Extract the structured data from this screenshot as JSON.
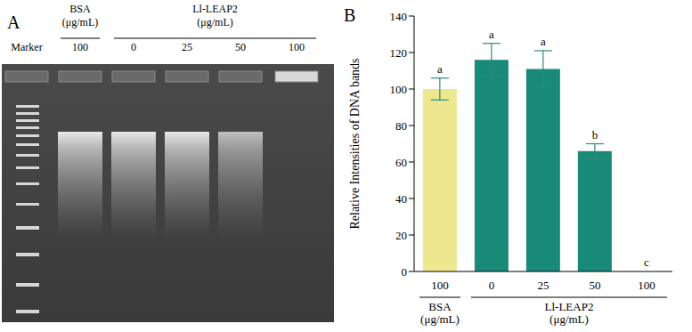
{
  "gel": {
    "panel_label": "A",
    "marker_label": "Marker",
    "groups": [
      {
        "label": "BSA (μg/mL)",
        "lanes": [
          "100"
        ]
      },
      {
        "label": "Ll-LEAP2 (μg/mL)",
        "lanes": [
          "0",
          "25",
          "50",
          "100"
        ]
      }
    ]
  },
  "chart_data": {
    "type": "bar",
    "panel_label": "B",
    "y_label": "Relative Intensities of DNA bands",
    "categories": [
      "100",
      "0",
      "25",
      "50",
      "100"
    ],
    "category_groups": [
      {
        "label": "BSA (μg/mL)",
        "categories": [
          "100"
        ]
      },
      {
        "label": "Ll-LEAP2 (μg/mL)",
        "categories": [
          "0",
          "25",
          "50",
          "100"
        ]
      }
    ],
    "values": [
      100,
      116,
      111,
      66,
      0
    ],
    "errors": [
      6,
      9,
      10,
      4,
      0
    ],
    "annotations": [
      "a",
      "a",
      "a",
      "b",
      "c"
    ],
    "colors": [
      "#ede88f",
      "#1a8a78",
      "#1a8a78",
      "#1a8a78",
      "#1a8a78"
    ],
    "ylim": [
      0,
      140
    ],
    "yticks": [
      0,
      20,
      40,
      60,
      80,
      100,
      120,
      140
    ],
    "grid": false
  }
}
